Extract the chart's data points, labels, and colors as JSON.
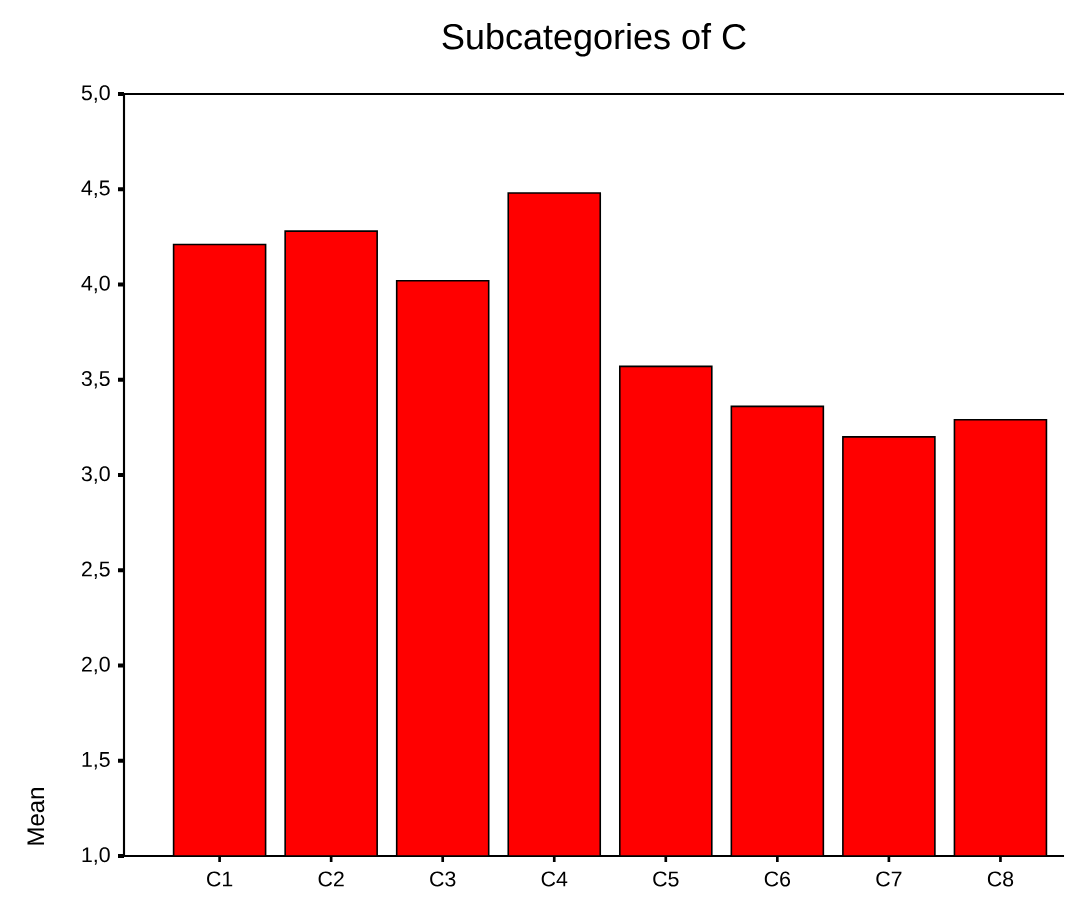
{
  "chart_data": {
    "type": "bar",
    "title": "Subcategories of C",
    "ylabel": "Mean",
    "categories": [
      "C1",
      "C2",
      "C3",
      "C4",
      "C5",
      "C6",
      "C7",
      "C8"
    ],
    "values": [
      4.21,
      4.28,
      4.02,
      4.48,
      3.57,
      3.36,
      3.2,
      3.29
    ],
    "color": "#ff0000",
    "ylim": [
      1,
      5
    ],
    "yticks": [
      {
        "value": 1,
        "label": "1,0"
      },
      {
        "value": 1.5,
        "label": "1,5"
      },
      {
        "value": 2,
        "label": "2,0"
      },
      {
        "value": 2.5,
        "label": "2,5"
      },
      {
        "value": 3,
        "label": "3,0"
      },
      {
        "value": 3.5,
        "label": "3,5"
      },
      {
        "value": 4,
        "label": "4,0"
      },
      {
        "value": 4.5,
        "label": "4,5"
      },
      {
        "value": 5,
        "label": "5,0"
      }
    ],
    "grid": false
  }
}
